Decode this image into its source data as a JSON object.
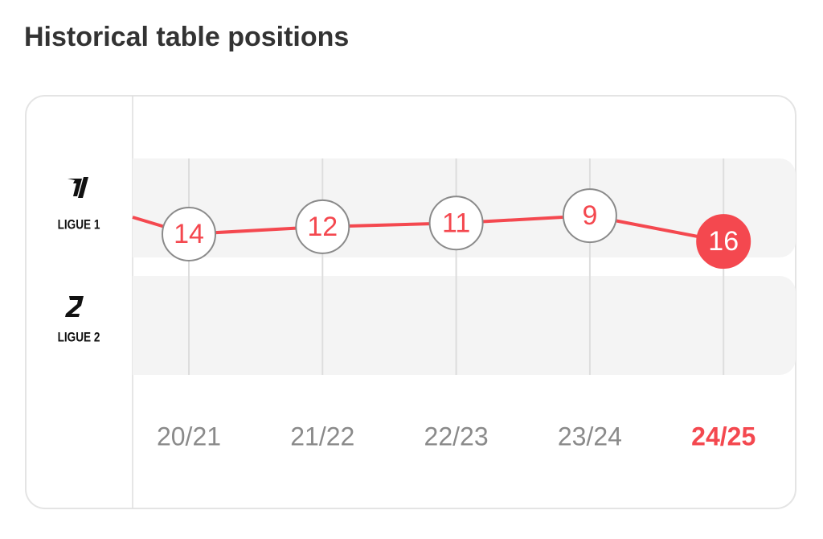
{
  "title": "Historical table positions",
  "chart_data": {
    "type": "line",
    "leagues": [
      "LIGUE 1",
      "LIGUE 2"
    ],
    "categories": [
      "20/21",
      "21/22",
      "22/23",
      "23/24",
      "24/25"
    ],
    "values": [
      14,
      12,
      11,
      9,
      16
    ],
    "color": "#f4484f"
  }
}
